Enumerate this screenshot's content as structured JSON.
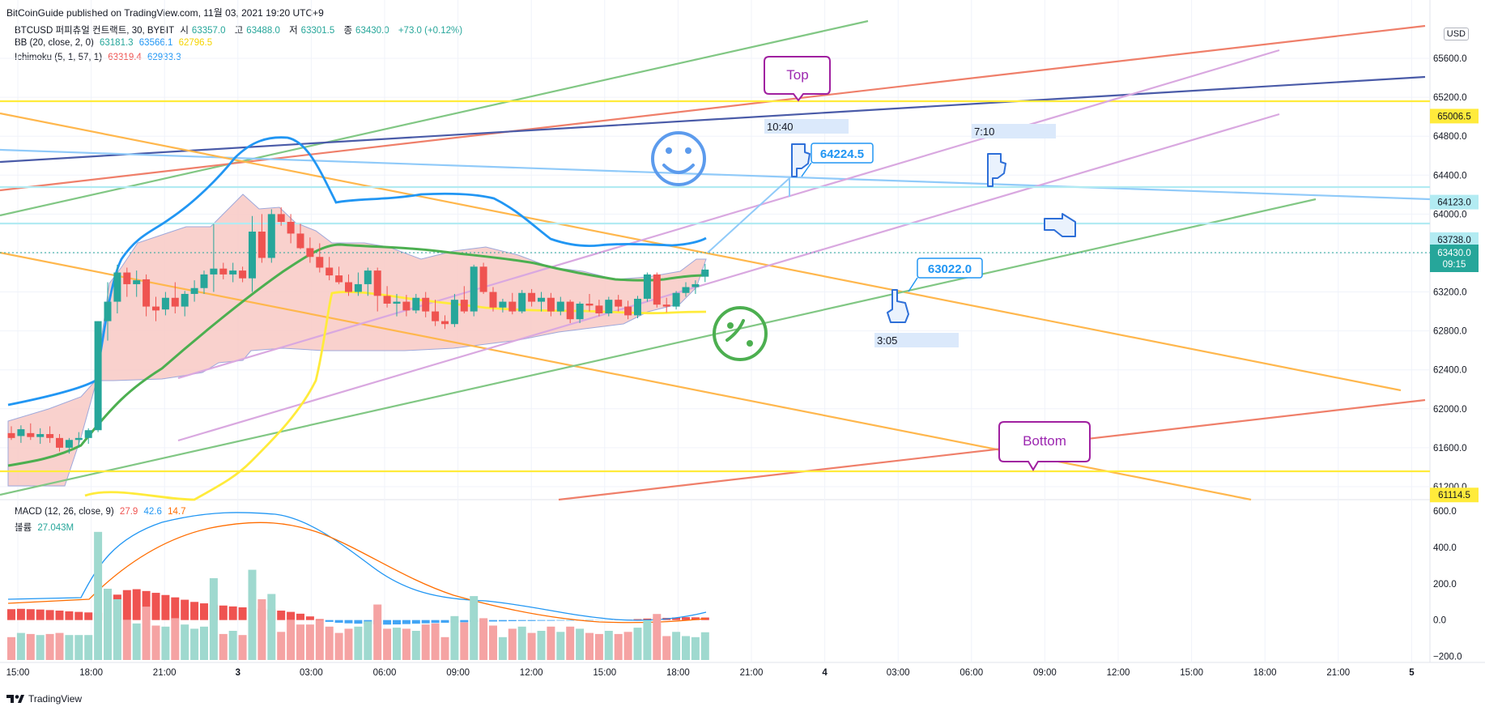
{
  "header": "BitCoinGuide published on TradingView.com, 11월 03, 2021 19:20 UTC+9",
  "legend": {
    "symbol": "BTCUSD 퍼피츄얼 컨트랙트, 30, BYBIT",
    "ohlc": [
      {
        "label": "시",
        "value": "63357.0"
      },
      {
        "label": "고",
        "value": "63488.0"
      },
      {
        "label": "저",
        "value": "63301.5"
      },
      {
        "label": "종",
        "value": "63430.0"
      }
    ],
    "change": "+73.0 (+0.12%)",
    "bb_label": "BB (20, close, 2, 0)",
    "bb_values": [
      "63181.3",
      "63566.1",
      "62796.5"
    ],
    "ichimoku_label": "Ichimoku (5, 1, 57, 1)",
    "ichimoku_values": [
      "63319.4",
      "62933.3"
    ],
    "macd_label": "MACD (12, 26, close, 9)",
    "macd_values": [
      "27.9",
      "42.6",
      "14.7"
    ],
    "volume_label": "볼륨",
    "volume_value": "27.043M"
  },
  "currency": "USD",
  "footer": "TradingView",
  "colors": {
    "up": "#26a69a",
    "down": "#ef5350",
    "cloud": "#f8c9c4",
    "bb_mid": "#4caf50",
    "bb_lower": "#ffeb3b",
    "ichi_blue": "#2196f3",
    "orange": "#ff9800",
    "green_line": "#66bb6a",
    "red_line": "#ef5350",
    "navy": "#3f51b5",
    "lilac": "#ce93d8",
    "lightblue": "#90caf9",
    "yellow": "#ffeb3b"
  },
  "chart_data": {
    "type": "candlestick",
    "price_ticks": [
      65600,
      65200,
      64800,
      64400,
      64000,
      63600,
      63200,
      62800,
      62400,
      62000,
      61600,
      61200
    ],
    "price_range": [
      61000,
      65800
    ],
    "macd_ticks": [
      600,
      400,
      200,
      0,
      -200
    ],
    "macd_range": [
      -220,
      650
    ],
    "time_ticks": [
      "15:00",
      "18:00",
      "21:00",
      "3",
      "03:00",
      "06:00",
      "09:00",
      "12:00",
      "15:00",
      "18:00",
      "21:00",
      "4",
      "03:00",
      "06:00",
      "09:00",
      "12:00",
      "15:00",
      "18:00",
      "21:00",
      "5"
    ],
    "time_tick_bold": [
      false,
      false,
      false,
      true,
      false,
      false,
      false,
      false,
      false,
      false,
      false,
      true,
      false,
      false,
      false,
      false,
      false,
      false,
      false,
      true
    ],
    "candles": [
      [
        61750,
        61820,
        61680,
        61700
      ],
      [
        61720,
        61830,
        61650,
        61790
      ],
      [
        61750,
        61850,
        61680,
        61710
      ],
      [
        61710,
        61800,
        61640,
        61740
      ],
      [
        61740,
        61820,
        61650,
        61700
      ],
      [
        61700,
        61740,
        61560,
        61600
      ],
      [
        61600,
        61700,
        61540,
        61680
      ],
      [
        61680,
        61760,
        61600,
        61700
      ],
      [
        61700,
        61800,
        61640,
        61780
      ],
      [
        61780,
        62900,
        61760,
        62900
      ],
      [
        62900,
        63300,
        62700,
        63100
      ],
      [
        63100,
        63480,
        62980,
        63400
      ],
      [
        63400,
        63450,
        63150,
        63280
      ],
      [
        63280,
        63420,
        63150,
        63320
      ],
      [
        63330,
        63380,
        62950,
        63050
      ],
      [
        63050,
        63150,
        62900,
        63010
      ],
      [
        63020,
        63200,
        62960,
        63140
      ],
      [
        63140,
        63300,
        62980,
        63050
      ],
      [
        63050,
        63210,
        62950,
        63180
      ],
      [
        63180,
        63320,
        63100,
        63240
      ],
      [
        63240,
        63420,
        63180,
        63380
      ],
      [
        63380,
        63900,
        63200,
        63440
      ],
      [
        63440,
        63500,
        63330,
        63380
      ],
      [
        63380,
        63500,
        63300,
        63420
      ],
      [
        63420,
        63460,
        63300,
        63340
      ],
      [
        63340,
        63980,
        63200,
        63820
      ],
      [
        63820,
        64000,
        63500,
        63550
      ],
      [
        63550,
        64050,
        63500,
        64000
      ],
      [
        64000,
        64070,
        63880,
        63920
      ],
      [
        63920,
        64000,
        63700,
        63800
      ],
      [
        63800,
        63900,
        63640,
        63650
      ],
      [
        63650,
        63760,
        63500,
        63560
      ],
      [
        63560,
        63700,
        63400,
        63450
      ],
      [
        63450,
        63560,
        63320,
        63370
      ],
      [
        63370,
        63460,
        63280,
        63300
      ],
      [
        63300,
        63380,
        63160,
        63200
      ],
      [
        63200,
        63400,
        63160,
        63280
      ],
      [
        63280,
        63450,
        63160,
        63420
      ],
      [
        63420,
        63450,
        63000,
        63160
      ],
      [
        63160,
        63260,
        63040,
        63080
      ],
      [
        63080,
        63180,
        62950,
        63100
      ],
      [
        63100,
        63170,
        62950,
        63010
      ],
      [
        63010,
        63180,
        62980,
        63140
      ],
      [
        63140,
        63200,
        62940,
        63000
      ],
      [
        63000,
        63120,
        62850,
        62900
      ],
      [
        62900,
        62960,
        62820,
        62870
      ],
      [
        62870,
        63180,
        62840,
        63120
      ],
      [
        63120,
        63260,
        62980,
        63000
      ],
      [
        63000,
        63480,
        62950,
        63460
      ],
      [
        63460,
        63500,
        63180,
        63200
      ],
      [
        63200,
        63250,
        63000,
        63040
      ],
      [
        63040,
        63130,
        62990,
        63100
      ],
      [
        63100,
        63190,
        62970,
        63000
      ],
      [
        63000,
        63220,
        62980,
        63190
      ],
      [
        63190,
        63230,
        63050,
        63100
      ],
      [
        63100,
        63200,
        63000,
        63140
      ],
      [
        63140,
        63190,
        62950,
        63000
      ],
      [
        63000,
        63150,
        62960,
        63100
      ],
      [
        63100,
        63120,
        62880,
        62920
      ],
      [
        62920,
        63100,
        62880,
        63080
      ],
      [
        63080,
        63180,
        63000,
        63060
      ],
      [
        63060,
        63120,
        62950,
        62980
      ],
      [
        62980,
        63150,
        62950,
        63120
      ],
      [
        63120,
        63170,
        63000,
        63050
      ],
      [
        63050,
        63110,
        62920,
        62960
      ],
      [
        62960,
        63160,
        62930,
        63130
      ],
      [
        63130,
        63400,
        63100,
        63380
      ],
      [
        63380,
        63400,
        63040,
        63070
      ],
      [
        63070,
        63140,
        62990,
        63050
      ],
      [
        63050,
        63210,
        63020,
        63190
      ],
      [
        63190,
        63300,
        63150,
        63250
      ],
      [
        63250,
        63320,
        63180,
        63280
      ],
      [
        63357,
        63488,
        63301.5,
        63430
      ]
    ],
    "last_price": "63430.0",
    "last_time": "09:15",
    "price_labels": [
      {
        "text": "65006.5",
        "price": 65006.5,
        "bg": "#ffeb3b",
        "fg": "#131722"
      },
      {
        "text": "64123.0",
        "price": 64123.0,
        "bg": "#b2ebf2",
        "fg": "#131722"
      },
      {
        "text": "63738.0",
        "price": 63738.0,
        "bg": "#b2ebf2",
        "fg": "#131722"
      },
      {
        "text": "61114.5",
        "price": 61114.5,
        "bg": "#ffeb3b",
        "fg": "#131722"
      }
    ],
    "annotations": {
      "top": "Top",
      "bottom": "Bottom",
      "callout_high": "64224.5",
      "callout_low": "63022.0",
      "time_box_1": "10:40",
      "time_box_2": "7:10",
      "time_box_3": "3:05"
    }
  }
}
